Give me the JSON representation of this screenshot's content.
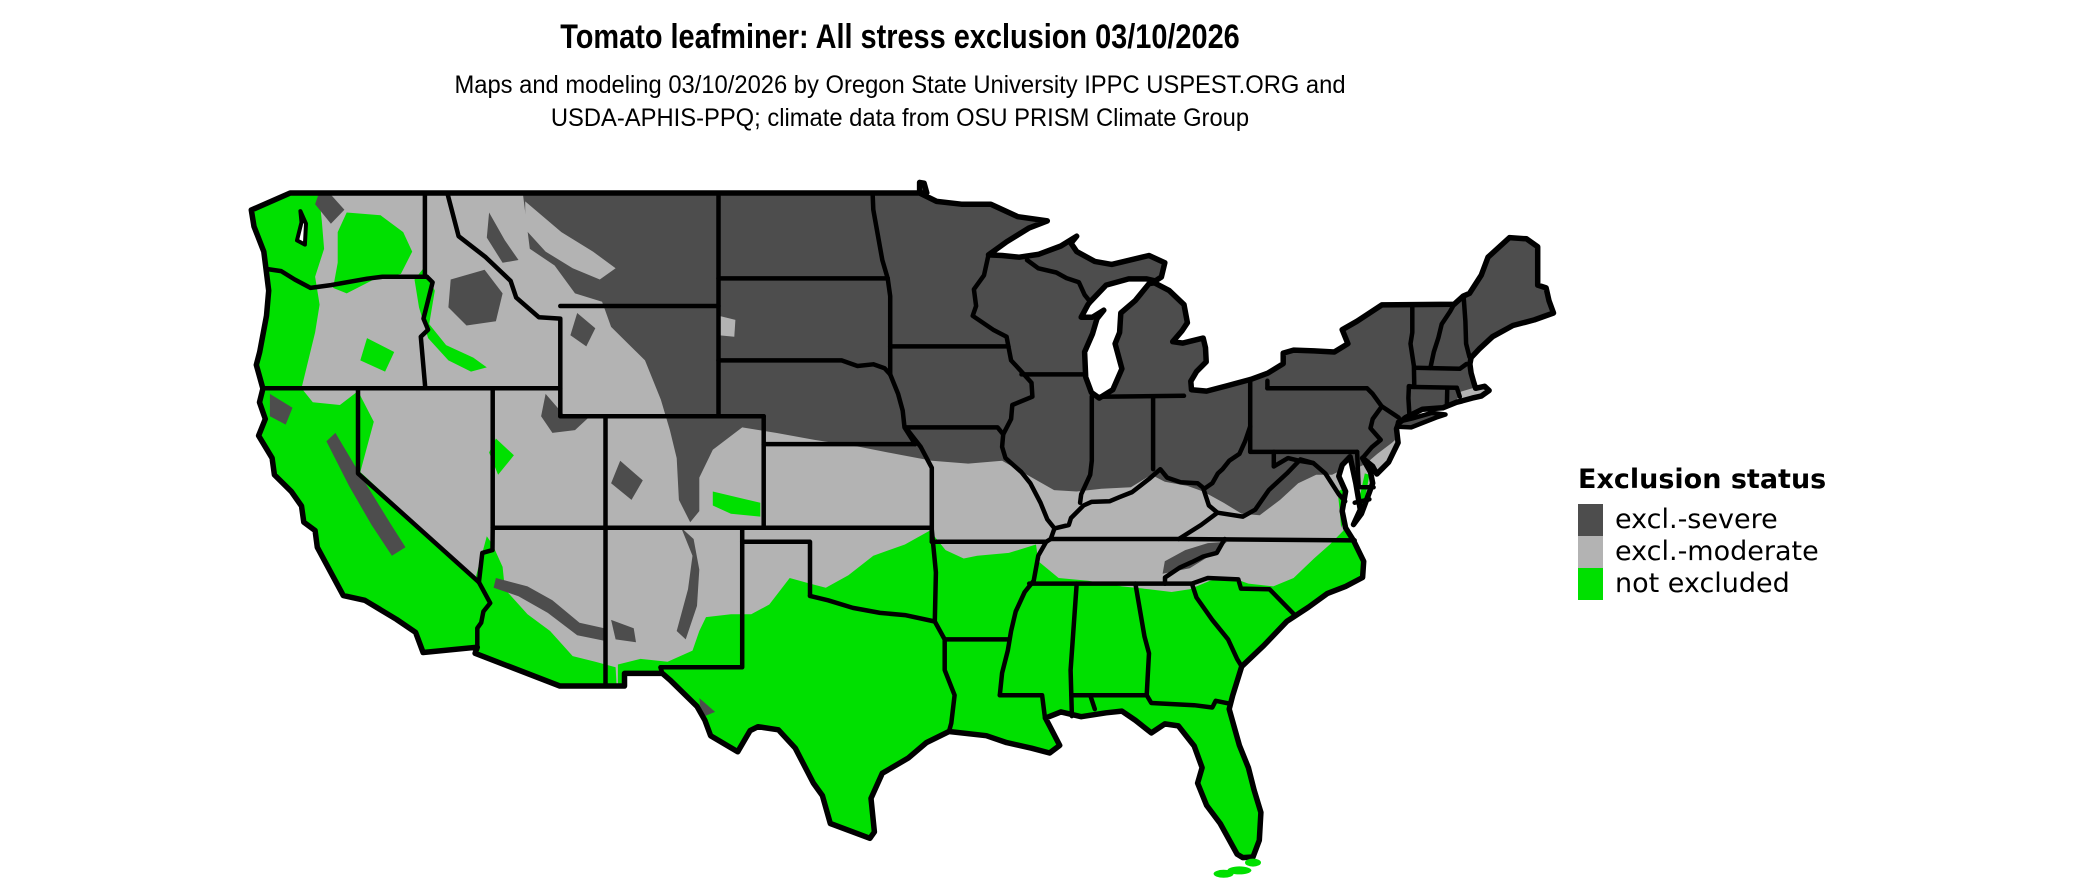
{
  "header": {
    "title": "Tomato leafminer: All stress exclusion 03/10/2026",
    "subtitle_line1": "Maps and modeling 03/10/2026 by Oregon State University IPPC USPEST.ORG and",
    "subtitle_line2": "USDA-APHIS-PPQ; climate data from OSU PRISM Climate Group"
  },
  "legend": {
    "title": "Exclusion status",
    "items": [
      {
        "key": "severe",
        "label": "excl.-severe",
        "color": "#4D4D4D"
      },
      {
        "key": "moderate",
        "label": "excl.-moderate",
        "color": "#B3B3B3"
      },
      {
        "key": "not_excluded",
        "label": "not excluded",
        "color": "#00E000"
      }
    ]
  },
  "map": {
    "type": "choropleth-raster",
    "region": "Continental United States",
    "classes": [
      "excl.-severe",
      "excl.-moderate",
      "not excluded"
    ],
    "colors": {
      "border": "#000000",
      "water": "#FFFFFF"
    }
  }
}
